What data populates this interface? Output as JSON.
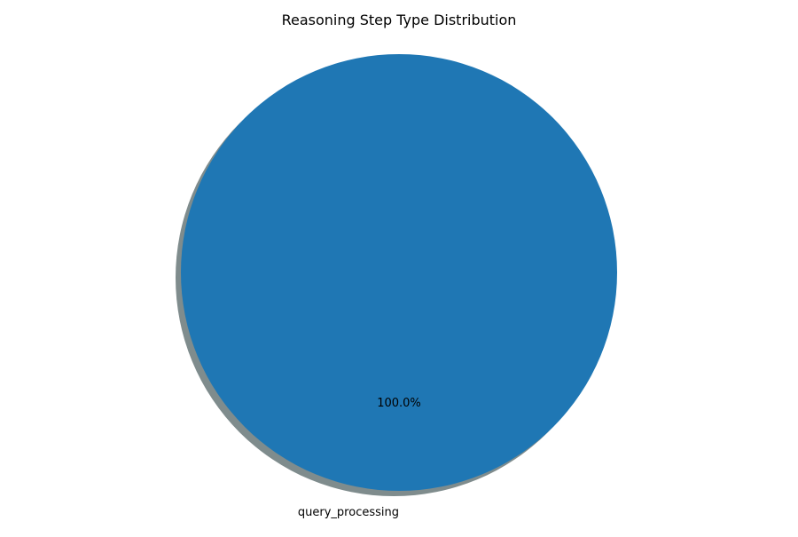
{
  "chart_data": {
    "type": "pie",
    "title": "Reasoning Step Type Distribution",
    "slices": [
      {
        "label": "query_processing",
        "value": 100.0,
        "percent_label": "100.0%",
        "color": "#1f77b4"
      }
    ],
    "shadow": true,
    "shadow_color": "#7f8c8d",
    "legend": "none"
  }
}
